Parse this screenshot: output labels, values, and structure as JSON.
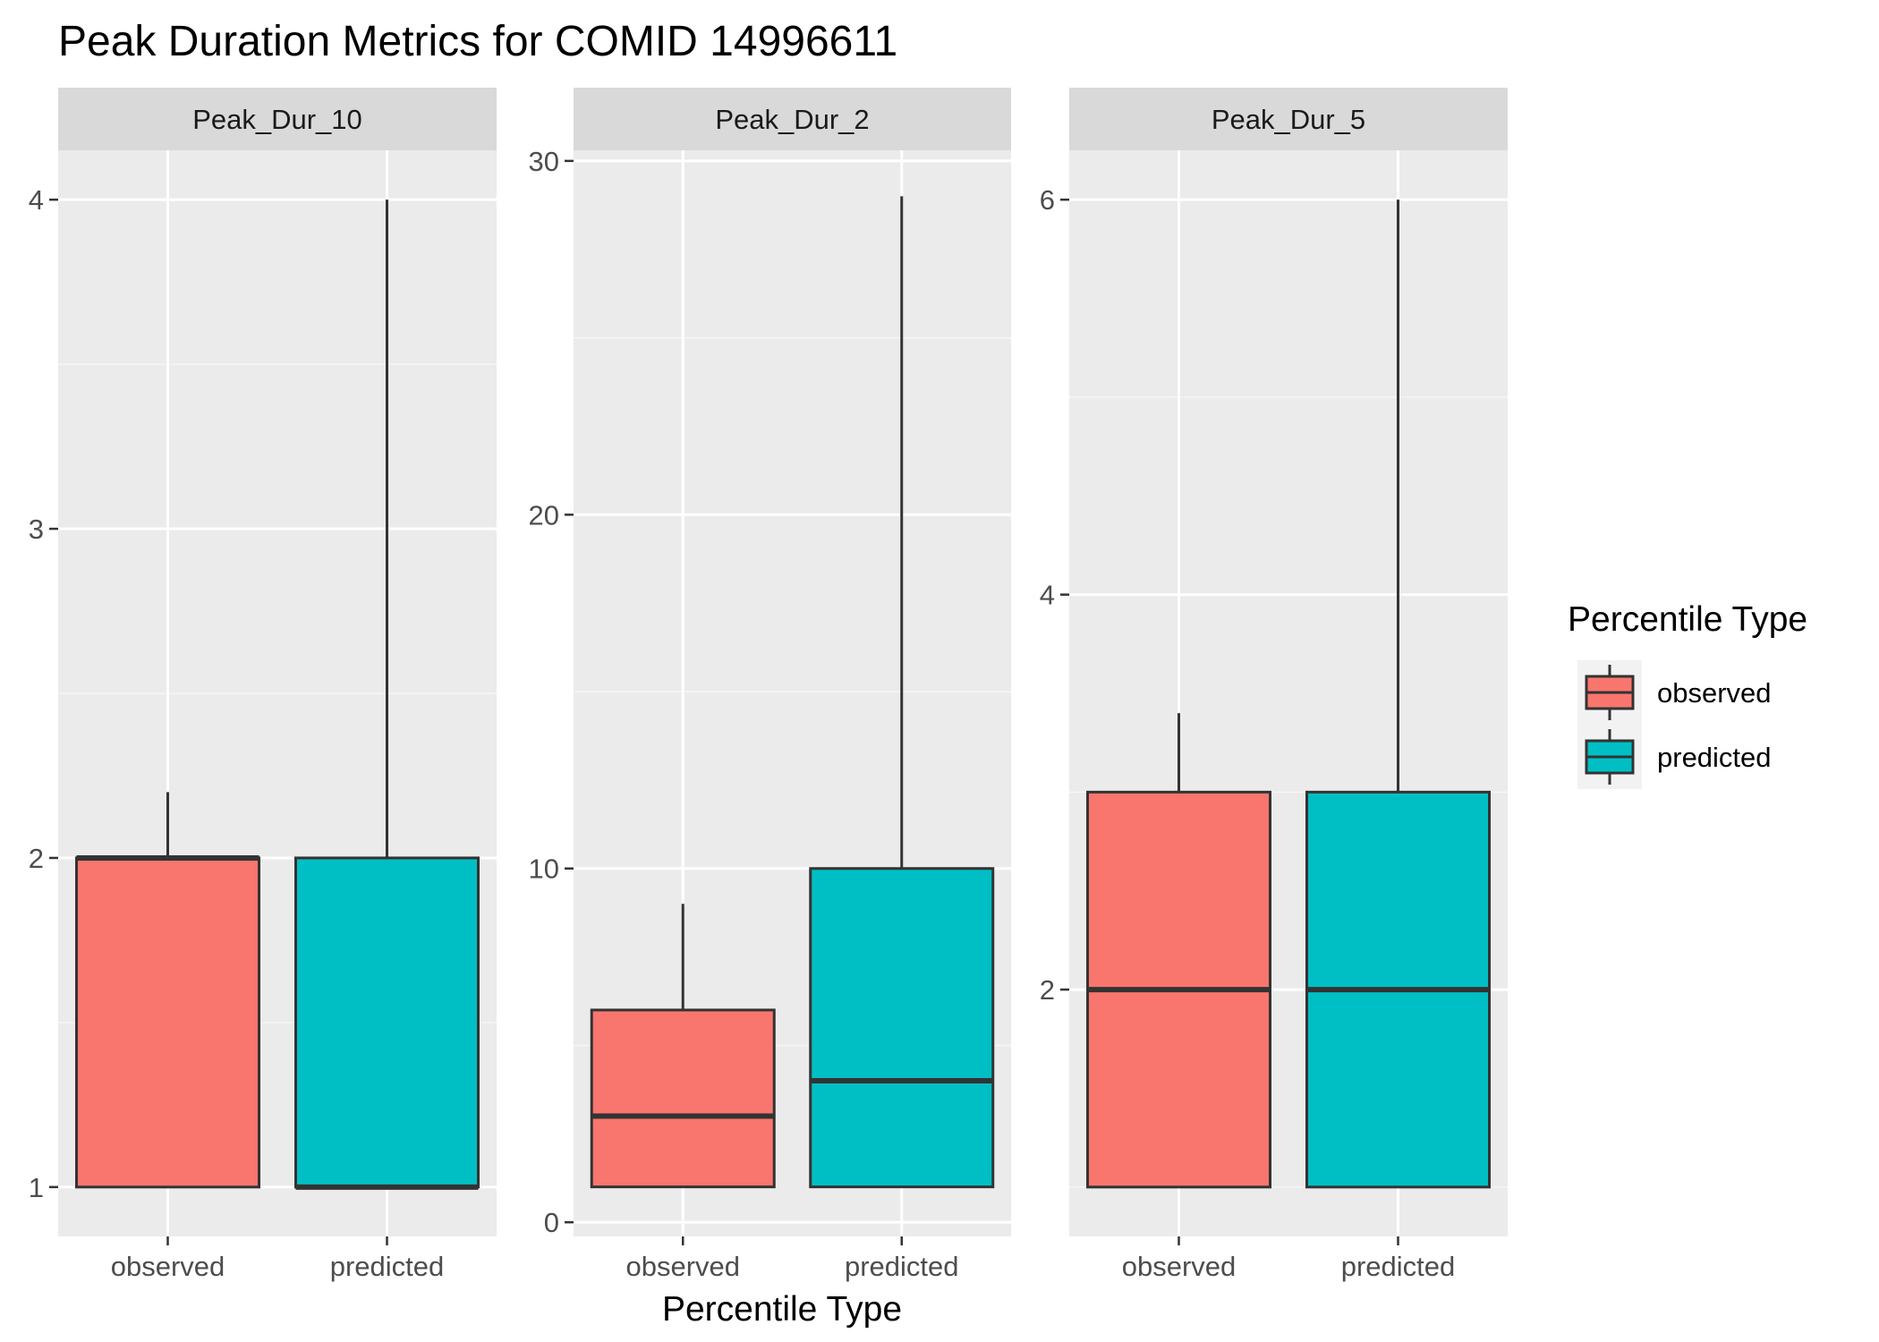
{
  "chart_data": {
    "type": "boxplot",
    "title": "Peak Duration Metrics for COMID 14996611",
    "xlabel": "Percentile Type",
    "ylabel": "",
    "categories": [
      "observed",
      "predicted"
    ],
    "legend": {
      "title": "Percentile Type",
      "placement": "right",
      "entries": [
        {
          "label": "observed",
          "color": "#F8766D"
        },
        {
          "label": "predicted",
          "color": "#00BFC4"
        }
      ]
    },
    "grid": true,
    "facets": [
      {
        "label": "Peak_Dur_10",
        "ylim": [
          0.85,
          4.15
        ],
        "yticks": [
          "1",
          "2",
          "3",
          "4"
        ],
        "boxes": [
          {
            "category": "observed",
            "lower_whisker": 1,
            "q1": 1,
            "median": 2,
            "q3": 2,
            "upper_whisker": 2.2
          },
          {
            "category": "predicted",
            "lower_whisker": 1,
            "q1": 1,
            "median": 1,
            "q3": 2,
            "upper_whisker": 4
          }
        ]
      },
      {
        "label": "Peak_Dur_2",
        "ylim": [
          -0.4,
          30.3
        ],
        "yticks": [
          "0",
          "10",
          "20",
          "30"
        ],
        "boxes": [
          {
            "category": "observed",
            "lower_whisker": 1,
            "q1": 1,
            "median": 3,
            "q3": 6,
            "upper_whisker": 9
          },
          {
            "category": "predicted",
            "lower_whisker": 1,
            "q1": 1,
            "median": 4,
            "q3": 10,
            "upper_whisker": 29
          }
        ]
      },
      {
        "label": "Peak_Dur_5",
        "ylim": [
          0.75,
          6.25
        ],
        "yticks": [
          "2",
          "4",
          "6"
        ],
        "boxes": [
          {
            "category": "observed",
            "lower_whisker": 1,
            "q1": 1,
            "median": 2,
            "q3": 3,
            "upper_whisker": 3.4
          },
          {
            "category": "predicted",
            "lower_whisker": 1,
            "q1": 1,
            "median": 2,
            "q3": 3,
            "upper_whisker": 6
          }
        ]
      }
    ]
  }
}
